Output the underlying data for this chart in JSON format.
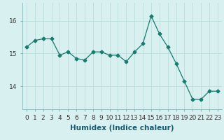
{
  "x": [
    0,
    1,
    2,
    3,
    4,
    5,
    6,
    7,
    8,
    9,
    10,
    11,
    12,
    13,
    14,
    15,
    16,
    17,
    18,
    19,
    20,
    21,
    22,
    23
  ],
  "y": [
    15.2,
    15.4,
    15.45,
    15.45,
    14.95,
    15.05,
    14.85,
    14.8,
    15.05,
    15.05,
    14.95,
    14.95,
    14.75,
    15.05,
    15.3,
    16.15,
    15.6,
    15.2,
    14.7,
    14.15,
    13.6,
    13.6,
    13.85,
    13.85
  ],
  "xlabel": "Humidex (Indice chaleur)",
  "xlim": [
    -0.5,
    23.5
  ],
  "ylim": [
    13.3,
    16.55
  ],
  "yticks": [
    14,
    15,
    16
  ],
  "xticks": [
    0,
    1,
    2,
    3,
    4,
    5,
    6,
    7,
    8,
    9,
    10,
    11,
    12,
    13,
    14,
    15,
    16,
    17,
    18,
    19,
    20,
    21,
    22,
    23
  ],
  "line_color": "#1a7a6e",
  "marker": "D",
  "marker_size": 2.5,
  "bg_color": "#d8f0f0",
  "grid_color": "#c0e0e0",
  "label_fontsize": 7.5,
  "tick_fontsize": 6.5
}
